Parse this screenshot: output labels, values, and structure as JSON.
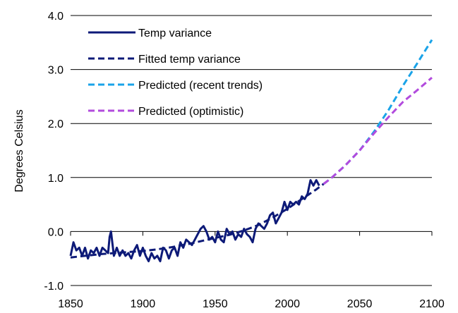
{
  "chart_data": {
    "type": "line",
    "title": "",
    "xlabel": "",
    "ylabel": "Degrees Celsius",
    "xlim": [
      1850,
      2100
    ],
    "ylim": [
      -1.0,
      4.0
    ],
    "x_ticks": [
      1850,
      1900,
      1950,
      2000,
      2050,
      2100
    ],
    "y_ticks": [
      -1.0,
      0.0,
      1.0,
      2.0,
      3.0,
      4.0
    ],
    "x_tick_labels": [
      "1850",
      "1900",
      "1950",
      "2000",
      "2050",
      "2100"
    ],
    "y_tick_labels": [
      "-1.0",
      "0.0",
      "1.0",
      "2.0",
      "3.0",
      "4.0"
    ],
    "grid": "horizontal",
    "legend_position": "top-left",
    "series": [
      {
        "name": "Temp variance",
        "color": "#0d1a78",
        "style": "solid",
        "x": [
          1850,
          1852,
          1854,
          1856,
          1858,
          1860,
          1862,
          1864,
          1866,
          1868,
          1870,
          1872,
          1874,
          1876,
          1877,
          1878,
          1880,
          1882,
          1884,
          1886,
          1888,
          1890,
          1892,
          1894,
          1896,
          1898,
          1900,
          1902,
          1904,
          1906,
          1908,
          1910,
          1912,
          1914,
          1916,
          1918,
          1920,
          1922,
          1924,
          1926,
          1928,
          1930,
          1932,
          1934,
          1936,
          1938,
          1940,
          1942,
          1944,
          1946,
          1948,
          1950,
          1952,
          1954,
          1956,
          1958,
          1960,
          1962,
          1964,
          1966,
          1968,
          1970,
          1972,
          1974,
          1976,
          1978,
          1980,
          1982,
          1984,
          1986,
          1988,
          1990,
          1992,
          1994,
          1996,
          1998,
          2000,
          2002,
          2004,
          2006,
          2008,
          2010,
          2012,
          2014,
          2016,
          2018,
          2020,
          2022
        ],
        "y": [
          -0.45,
          -0.2,
          -0.35,
          -0.3,
          -0.45,
          -0.3,
          -0.5,
          -0.35,
          -0.4,
          -0.3,
          -0.45,
          -0.3,
          -0.35,
          -0.4,
          -0.1,
          0.0,
          -0.45,
          -0.3,
          -0.45,
          -0.35,
          -0.45,
          -0.4,
          -0.5,
          -0.35,
          -0.25,
          -0.45,
          -0.3,
          -0.45,
          -0.55,
          -0.4,
          -0.5,
          -0.45,
          -0.55,
          -0.3,
          -0.35,
          -0.5,
          -0.35,
          -0.3,
          -0.45,
          -0.2,
          -0.3,
          -0.15,
          -0.2,
          -0.25,
          -0.15,
          -0.05,
          0.05,
          0.1,
          0.0,
          -0.15,
          -0.1,
          -0.2,
          0.0,
          -0.15,
          -0.2,
          0.05,
          -0.05,
          0.0,
          -0.15,
          -0.05,
          -0.1,
          0.05,
          -0.05,
          -0.1,
          -0.2,
          0.05,
          0.15,
          0.1,
          0.05,
          0.15,
          0.3,
          0.35,
          0.15,
          0.25,
          0.35,
          0.55,
          0.4,
          0.55,
          0.5,
          0.55,
          0.5,
          0.65,
          0.6,
          0.7,
          0.95,
          0.85,
          0.95,
          0.85
        ]
      },
      {
        "name": "Fitted temp variance",
        "color": "#0d1a78",
        "style": "dashed",
        "x": [
          1850,
          1860,
          1870,
          1880,
          1890,
          1900,
          1910,
          1920,
          1930,
          1940,
          1950,
          1960,
          1970,
          1980,
          1990,
          2000,
          2010,
          2020,
          2025
        ],
        "y": [
          -0.48,
          -0.45,
          -0.42,
          -0.4,
          -0.38,
          -0.36,
          -0.33,
          -0.29,
          -0.24,
          -0.18,
          -0.12,
          -0.06,
          0.02,
          0.12,
          0.26,
          0.42,
          0.6,
          0.78,
          0.88
        ]
      },
      {
        "name": "Predicted (recent trends)",
        "color": "#1aa3e8",
        "style": "dashed",
        "x": [
          2025,
          2030,
          2040,
          2050,
          2060,
          2070,
          2080,
          2090,
          2100
        ],
        "y": [
          0.88,
          0.98,
          1.22,
          1.5,
          1.85,
          2.25,
          2.7,
          3.12,
          3.55
        ]
      },
      {
        "name": "Predicted (optimistic)",
        "color": "#b24bdd",
        "style": "dashed",
        "x": [
          2025,
          2030,
          2040,
          2050,
          2060,
          2070,
          2080,
          2090,
          2100
        ],
        "y": [
          0.88,
          0.98,
          1.22,
          1.5,
          1.82,
          2.12,
          2.4,
          2.62,
          2.85
        ]
      }
    ]
  }
}
